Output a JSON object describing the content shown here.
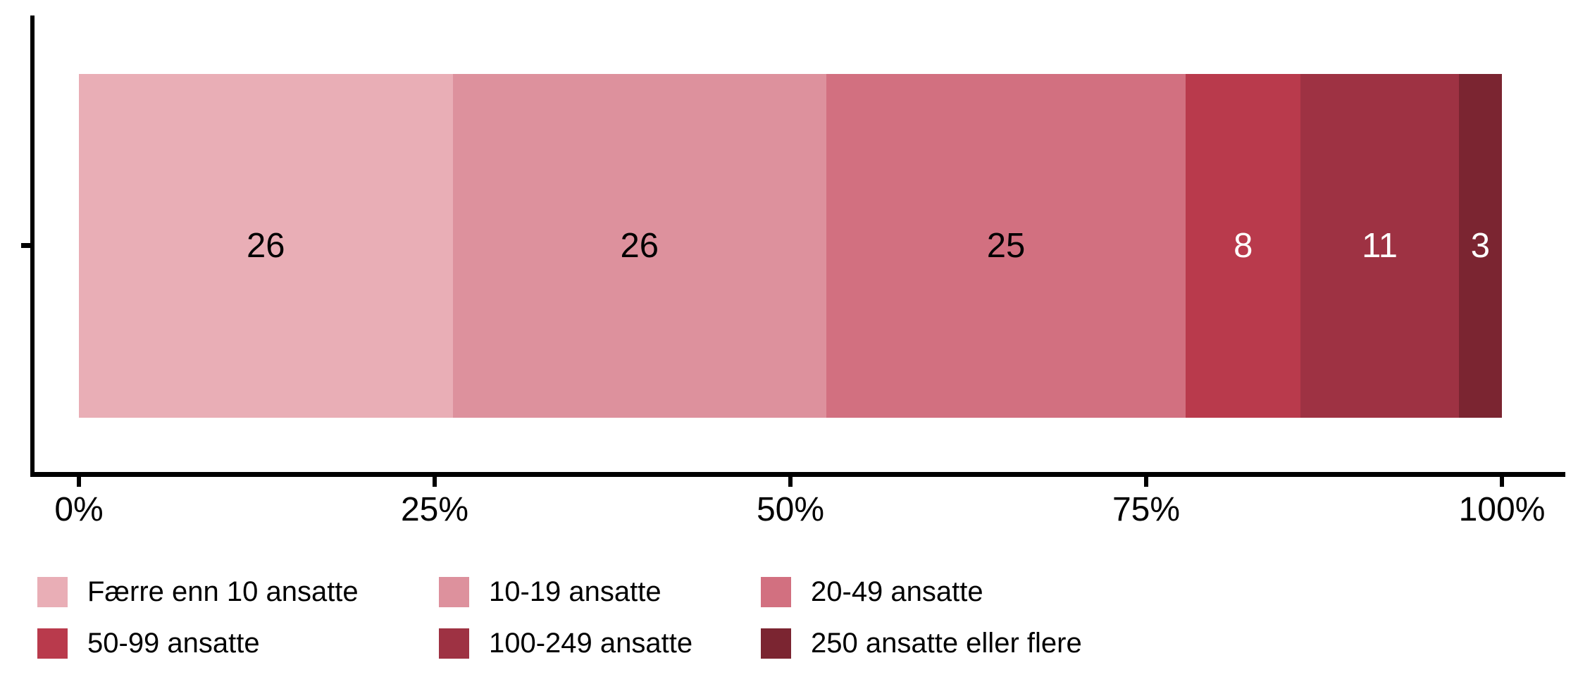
{
  "chart_data": {
    "type": "bar",
    "stacked": true,
    "orientation": "horizontal",
    "title": "",
    "xlabel": "",
    "ylabel": "",
    "categories": [
      ""
    ],
    "xlim": [
      0,
      100
    ],
    "grid": false,
    "axis_color": "#000000",
    "legend_position": "bottom",
    "x_ticks": [
      {
        "label": "0%",
        "value": 0
      },
      {
        "label": "25%",
        "value": 25
      },
      {
        "label": "50%",
        "value": 50
      },
      {
        "label": "75%",
        "value": 75
      },
      {
        "label": "100%",
        "value": 100
      }
    ],
    "series": [
      {
        "name": "Færre enn 10 ansatte",
        "values": [
          26
        ],
        "color": "#E9AEB6",
        "label": "26",
        "label_color": "#000000"
      },
      {
        "name": "10-19 ansatte",
        "values": [
          26
        ],
        "color": "#DD919D",
        "label": "26",
        "label_color": "#000000"
      },
      {
        "name": "20-49 ansatte",
        "values": [
          25
        ],
        "color": "#D27080",
        "label": "25",
        "label_color": "#000000"
      },
      {
        "name": "50-99 ansatte",
        "values": [
          8
        ],
        "color": "#B93A4C",
        "label": "8",
        "label_color": "#FFFFFF"
      },
      {
        "name": "100-249 ansatte",
        "values": [
          11
        ],
        "color": "#9E3243",
        "label": "11",
        "label_color": "#FFFFFF"
      },
      {
        "name": "250 ansatte eller flere",
        "values": [
          3
        ],
        "color": "#7B2531",
        "label": "3",
        "label_color": "#FFFFFF"
      }
    ]
  }
}
